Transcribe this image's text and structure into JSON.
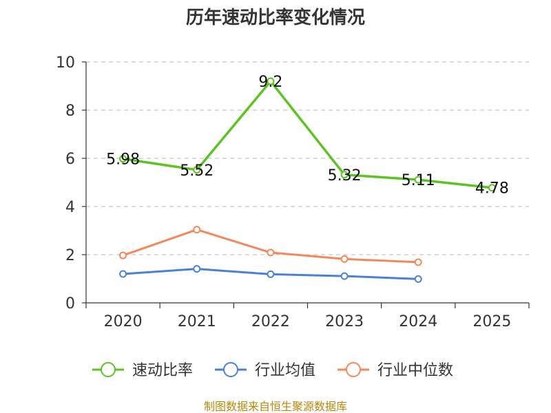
{
  "chart_data": {
    "type": "line",
    "title": "历年速动比率变化情况",
    "categories": [
      "2020",
      "2021",
      "2022",
      "2023",
      "2024",
      "2025"
    ],
    "ylim": [
      0,
      10
    ],
    "yticks": [
      0,
      2,
      4,
      6,
      8,
      10
    ],
    "grid": true,
    "legend_position": "bottom",
    "series": [
      {
        "name": "速动比率",
        "color": "#5cc322",
        "values": [
          5.98,
          5.52,
          9.2,
          5.32,
          5.11,
          4.78
        ],
        "labels": [
          "5.98",
          "5.52",
          "9.2",
          "5.32",
          "5.11",
          "4.78"
        ],
        "show_labels": true
      },
      {
        "name": "行业均值",
        "color": "#4a7fdc",
        "values": [
          1.2,
          1.41,
          1.19,
          1.11,
          0.99,
          null
        ],
        "show_labels": false
      },
      {
        "name": "行业中位数",
        "color": "#f5885a",
        "values": [
          1.97,
          3.04,
          2.09,
          1.82,
          1.69,
          null
        ],
        "show_labels": false
      }
    ]
  },
  "source": "制图数据来自恒生聚源数据库"
}
